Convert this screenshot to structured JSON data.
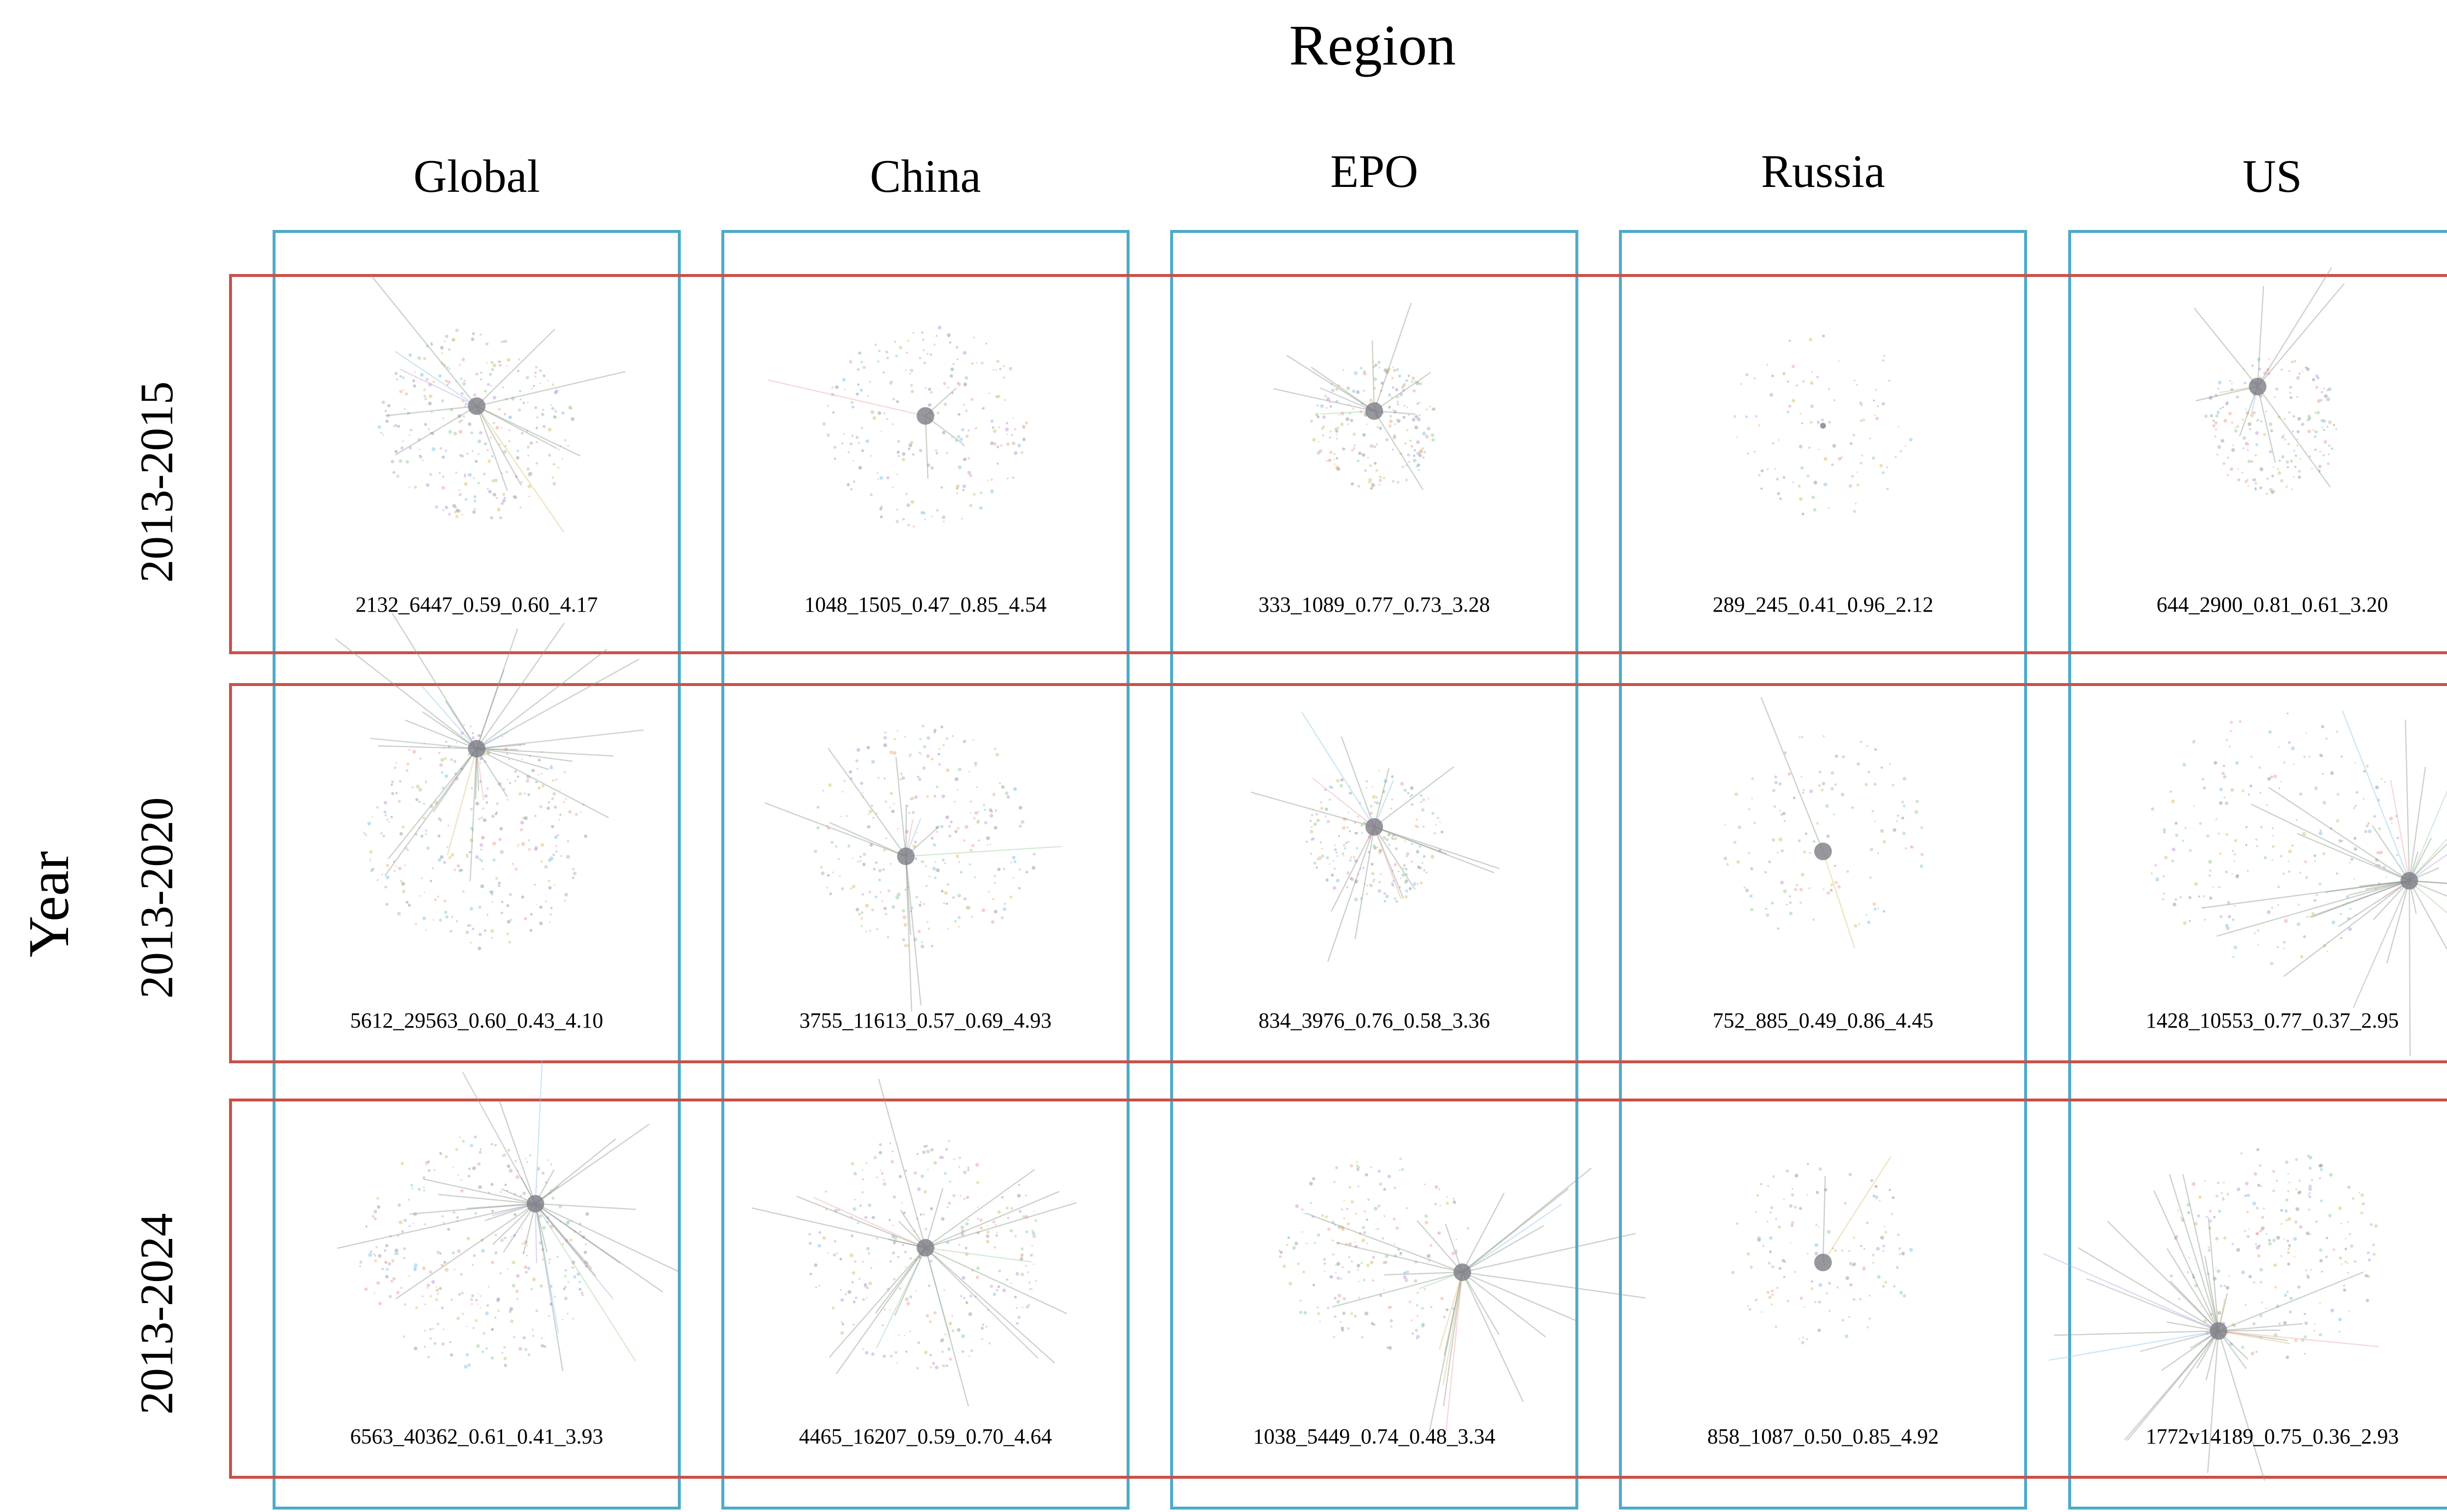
{
  "titles": {
    "region": "Region",
    "year": "Year"
  },
  "columns": [
    "Global",
    "China",
    "EPO",
    "Russia",
    "US"
  ],
  "rows": [
    "2013-2015",
    "2013-2020",
    "2013-2024"
  ],
  "captions": [
    [
      "2132_6447_0.59_0.60_4.17",
      "1048_1505_0.47_0.85_4.54",
      "333_1089_0.77_0.73_3.28",
      "289_245_0.41_0.96_2.12",
      "644_2900_0.81_0.61_3.20"
    ],
    [
      "5612_29563_0.60_0.43_4.10",
      "3755_11613_0.57_0.69_4.93",
      "834_3976_0.76_0.58_3.36",
      "752_885_0.49_0.86_4.45",
      "1428_10553_0.77_0.37_2.95"
    ],
    [
      "6563_40362_0.61_0.41_3.93",
      "4465_16207_0.59_0.70_4.64",
      "1038_5449_0.74_0.48_3.34",
      "858_1087_0.50_0.85_4.92",
      "1772v14189_0.75_0.36_2.93"
    ]
  ],
  "colors": {
    "column_box": "#4eaac8",
    "row_box": "#c9514a",
    "node_palette": [
      "#9aa0a6",
      "#c3a3e0",
      "#9fd3a3",
      "#f1a8a8",
      "#8fc9e8",
      "#e0c27a"
    ]
  }
}
